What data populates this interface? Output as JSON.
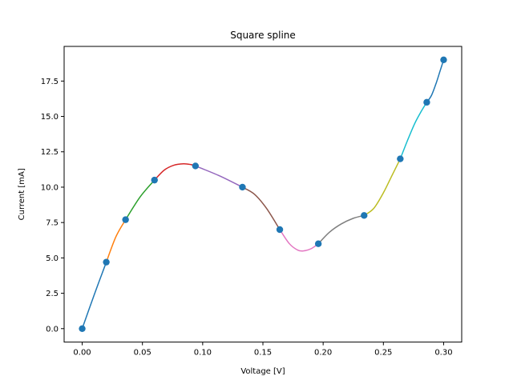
{
  "chart_data": {
    "type": "line",
    "title": "Square spline",
    "xlabel": "Voltage [V]",
    "ylabel": "Current [mA]",
    "xlim": [
      -0.015,
      0.315
    ],
    "ylim": [
      -0.95,
      19.95
    ],
    "grid": false,
    "x_ticks": [
      0.0,
      0.05,
      0.1,
      0.15,
      0.2,
      0.25,
      0.3
    ],
    "x_tick_labels": [
      "0.00",
      "0.05",
      "0.10",
      "0.15",
      "0.20",
      "0.25",
      "0.30"
    ],
    "y_ticks": [
      0.0,
      2.5,
      5.0,
      7.5,
      10.0,
      12.5,
      15.0,
      17.5
    ],
    "y_tick_labels": [
      "0.0",
      "2.5",
      "5.0",
      "7.5",
      "10.0",
      "12.5",
      "15.0",
      "17.5"
    ],
    "points": {
      "x": [
        0.0,
        0.02,
        0.036,
        0.06,
        0.094,
        0.133,
        0.164,
        0.196,
        0.234,
        0.264,
        0.286,
        0.3
      ],
      "y": [
        0.0,
        4.7,
        7.7,
        10.5,
        11.5,
        10.0,
        7.0,
        6.0,
        8.0,
        12.0,
        16.0,
        19.0
      ],
      "color": "#1f77b4"
    },
    "segments": [
      {
        "color": "#1f77b4",
        "x": [
          0.0,
          0.01,
          0.02
        ],
        "y": [
          0.0,
          2.4,
          4.7
        ]
      },
      {
        "color": "#ff7f0e",
        "x": [
          0.02,
          0.028,
          0.036
        ],
        "y": [
          4.7,
          6.5,
          7.7
        ]
      },
      {
        "color": "#2ca02c",
        "x": [
          0.036,
          0.048,
          0.06
        ],
        "y": [
          7.7,
          9.3,
          10.5
        ]
      },
      {
        "color": "#d62728",
        "x": [
          0.06,
          0.068,
          0.076,
          0.084,
          0.09,
          0.094
        ],
        "y": [
          10.5,
          11.2,
          11.55,
          11.65,
          11.6,
          11.5
        ]
      },
      {
        "color": "#9467bd",
        "x": [
          0.094,
          0.114,
          0.133
        ],
        "y": [
          11.5,
          10.8,
          10.0
        ]
      },
      {
        "color": "#8c564b",
        "x": [
          0.133,
          0.143,
          0.153,
          0.164
        ],
        "y": [
          10.0,
          9.5,
          8.5,
          7.0
        ]
      },
      {
        "color": "#e377c2",
        "x": [
          0.164,
          0.172,
          0.179,
          0.184,
          0.19,
          0.196
        ],
        "y": [
          7.0,
          6.0,
          5.55,
          5.5,
          5.65,
          6.0
        ]
      },
      {
        "color": "#7f7f7f",
        "x": [
          0.196,
          0.205,
          0.215,
          0.225,
          0.234
        ],
        "y": [
          6.0,
          6.8,
          7.4,
          7.8,
          8.0
        ]
      },
      {
        "color": "#bcbd22",
        "x": [
          0.234,
          0.242,
          0.25,
          0.257,
          0.264
        ],
        "y": [
          8.0,
          8.5,
          9.6,
          10.8,
          12.0
        ]
      },
      {
        "color": "#17becf",
        "x": [
          0.264,
          0.27,
          0.276,
          0.281,
          0.286
        ],
        "y": [
          12.0,
          13.3,
          14.5,
          15.3,
          16.0
        ]
      },
      {
        "color": "#1f77b4",
        "x": [
          0.286,
          0.29,
          0.294,
          0.297,
          0.3
        ],
        "y": [
          16.0,
          16.5,
          17.4,
          18.2,
          19.0
        ]
      }
    ]
  }
}
